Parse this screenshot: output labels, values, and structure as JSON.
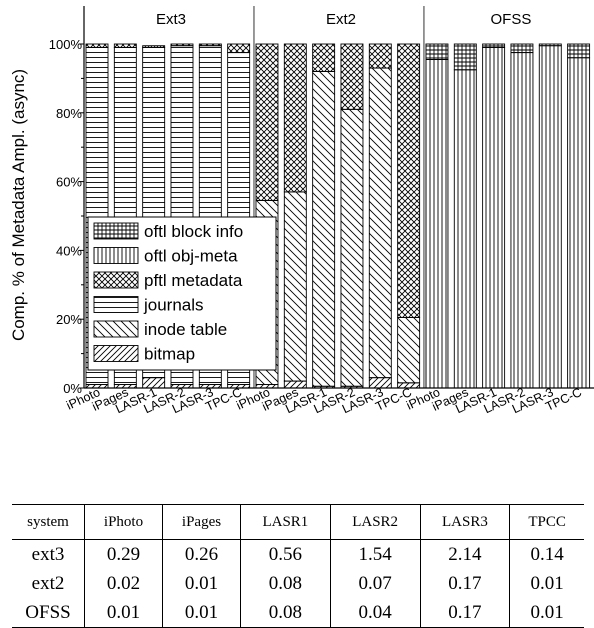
{
  "chart_data": {
    "type": "bar",
    "stacked": true,
    "ylabel": "Comp. % of Metadata Ampl. (async)",
    "ylim": [
      0,
      100
    ],
    "yticks": [
      "0%",
      "20%",
      "40%",
      "60%",
      "80%",
      "100%"
    ],
    "groups": [
      "Ext3",
      "Ext2",
      "OFSS"
    ],
    "categories": [
      [
        "iPhoto",
        "iPages",
        "LASR-1",
        "LASR-2",
        "LASR-3",
        "TPC-C"
      ],
      [
        "iPhoto",
        "iPages",
        "LASR-1",
        "LASR-2",
        "LASR-3",
        "TPC-C"
      ],
      [
        "iPhoto",
        "iPages",
        "LASR-1",
        "LASR-2",
        "LASR-3",
        "TPC-C"
      ]
    ],
    "legend_position": "lower-left",
    "series": [
      {
        "name": "bitmap",
        "pattern": "diag-up",
        "values": [
          [
            1,
            1,
            3,
            1,
            1,
            1
          ],
          [
            1,
            2,
            0.5,
            0.5,
            3,
            1.5
          ],
          [
            0,
            0,
            0,
            0,
            0,
            0
          ]
        ]
      },
      {
        "name": "inode table",
        "pattern": "diag-down",
        "values": [
          [
            0,
            0,
            0,
            0,
            0,
            0
          ],
          [
            53.5,
            55,
            91.5,
            80.5,
            90,
            19
          ],
          [
            0,
            0,
            0,
            0,
            0,
            0
          ]
        ]
      },
      {
        "name": "journals",
        "pattern": "horizontal",
        "values": [
          [
            98,
            98,
            96,
            98.5,
            98.5,
            96.5
          ],
          [
            0,
            0,
            0,
            0,
            0,
            0
          ],
          [
            0,
            0,
            0,
            0,
            0,
            0
          ]
        ]
      },
      {
        "name": "pftl metadata",
        "pattern": "crosshatch",
        "values": [
          [
            1,
            1,
            0.5,
            0.5,
            0.5,
            2.5
          ],
          [
            45.5,
            43,
            8,
            19,
            7,
            79.5
          ],
          [
            0,
            0,
            0,
            0,
            0,
            0
          ]
        ]
      },
      {
        "name": "oftl obj-meta",
        "pattern": "vertical",
        "values": [
          [
            0,
            0,
            0,
            0,
            0,
            0
          ],
          [
            0,
            0,
            0,
            0,
            0,
            0
          ],
          [
            95.5,
            92.5,
            99,
            97.5,
            99.5,
            96
          ]
        ]
      },
      {
        "name": "oftl block info",
        "pattern": "grid",
        "values": [
          [
            0,
            0,
            0,
            0,
            0,
            0
          ],
          [
            0,
            0,
            0,
            0,
            0,
            0
          ],
          [
            4.5,
            7.5,
            1,
            2.5,
            0.5,
            4
          ]
        ]
      }
    ],
    "legend_order": [
      "oftl block info",
      "oftl obj-meta",
      "pftl metadata",
      "journals",
      "inode table",
      "bitmap"
    ]
  },
  "table": {
    "headers": [
      "system",
      "iPhoto",
      "iPages",
      "LASR1",
      "LASR2",
      "LASR3",
      "TPCC"
    ],
    "rows": [
      [
        "ext3",
        "0.29",
        "0.26",
        "0.56",
        "1.54",
        "2.14",
        "0.14"
      ],
      [
        "ext2",
        "0.02",
        "0.01",
        "0.08",
        "0.07",
        "0.17",
        "0.01"
      ],
      [
        "OFSS",
        "0.01",
        "0.01",
        "0.08",
        "0.04",
        "0.17",
        "0.01"
      ]
    ]
  }
}
